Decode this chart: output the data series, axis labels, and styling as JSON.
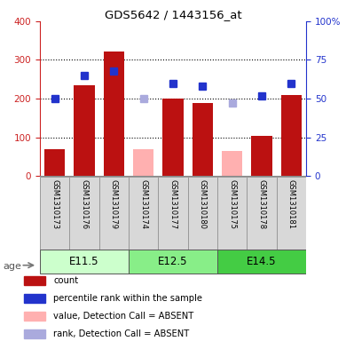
{
  "title": "GDS5642 / 1443156_at",
  "samples": [
    "GSM1310173",
    "GSM1310176",
    "GSM1310179",
    "GSM1310174",
    "GSM1310177",
    "GSM1310180",
    "GSM1310175",
    "GSM1310178",
    "GSM1310181"
  ],
  "absent": [
    false,
    false,
    false,
    true,
    false,
    false,
    true,
    false,
    false
  ],
  "count_values": [
    70,
    235,
    322,
    70,
    200,
    188,
    65,
    105,
    210
  ],
  "rank_values": [
    50,
    65,
    68,
    50,
    60,
    58,
    47,
    52,
    60
  ],
  "age_groups": [
    {
      "label": "E11.5",
      "start": 0,
      "end": 3
    },
    {
      "label": "E12.5",
      "start": 3,
      "end": 6
    },
    {
      "label": "E14.5",
      "start": 6,
      "end": 9
    }
  ],
  "ylim_left": [
    0,
    400
  ],
  "ylim_right": [
    0,
    100
  ],
  "yticks_left": [
    0,
    100,
    200,
    300,
    400
  ],
  "yticks_right": [
    0,
    25,
    50,
    75,
    100
  ],
  "ytick_right_labels": [
    "0",
    "25",
    "50",
    "75",
    "100%"
  ],
  "bar_color_present": "#bb1111",
  "bar_color_absent": "#ffb0b0",
  "dot_color_present": "#2233cc",
  "dot_color_absent": "#aaaadd",
  "grid_color": "#000000",
  "bg_color_sample": "#d8d8d8",
  "bg_color_age_light": "#ccffcc",
  "bg_color_age_dark": "#66ee66",
  "left_axis_color": "#cc2222",
  "right_axis_color": "#2233cc",
  "legend_items": [
    {
      "label": "count",
      "color": "#bb1111"
    },
    {
      "label": "percentile rank within the sample",
      "color": "#2233cc"
    },
    {
      "label": "value, Detection Call = ABSENT",
      "color": "#ffb0b0"
    },
    {
      "label": "rank, Detection Call = ABSENT",
      "color": "#aaaadd"
    }
  ],
  "age_colors": [
    "#ccffcc",
    "#88ee88",
    "#44dd44"
  ]
}
